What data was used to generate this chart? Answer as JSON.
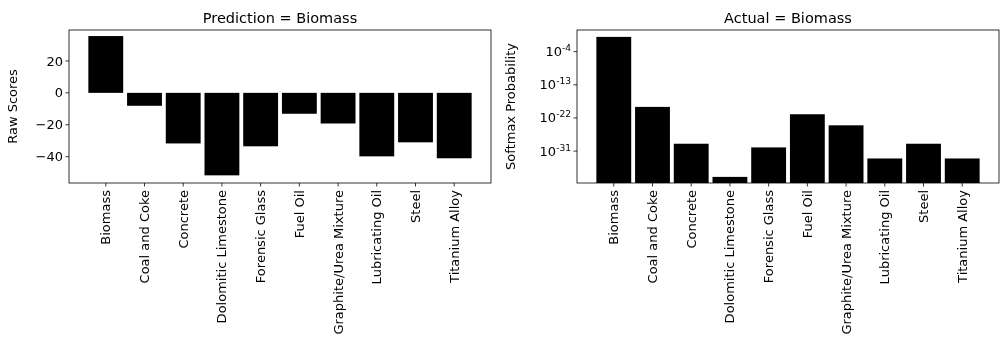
{
  "chart_data": [
    {
      "type": "bar",
      "title": "Prediction = Biomass",
      "ylabel": "Raw Scores",
      "categories": [
        "Biomass",
        "Coal and Coke",
        "Concrete",
        "Dolomitic Limestone",
        "Forensic Glass",
        "Fuel Oil",
        "Graphite/Urea Mixture",
        "Lubricating Oil",
        "Steel",
        "Titanium Alloy"
      ],
      "values": [
        35.6,
        -8.1,
        -31.7,
        -51.7,
        -33.5,
        -13.1,
        -19.2,
        -39.8,
        -31,
        -41
      ],
      "color": "#000000",
      "ylim": [
        -56.5,
        39.4
      ],
      "yticks": [
        -40,
        -20,
        0,
        20
      ],
      "grid": false
    },
    {
      "type": "bar",
      "title": "Actual = Biomass",
      "ylabel": "Softmax Probability",
      "categories": [
        "Biomass",
        "Coal and Coke",
        "Concrete",
        "Dolomitic Limestone",
        "Forensic Glass",
        "Fuel Oil",
        "Graphite/Urea Mixture",
        "Lubricating Oil",
        "Steel",
        "Titanium Alloy"
      ],
      "values": [
        1,
        1e-19,
        1e-29,
        1e-38,
        1e-30,
        1e-21,
        1e-24,
        1e-33,
        1e-29,
        1e-33
      ],
      "color": "#000000",
      "log": true,
      "ylim": [
        2.2e-40,
        74
      ],
      "yticks": [
        {
          "value": 1e-31,
          "label": "10$^{-31}$"
        },
        {
          "value": 1e-22,
          "label": "10$^{-22}$"
        },
        {
          "value": 1e-13,
          "label": "10$^{-13}$"
        },
        {
          "value": 0.0001,
          "label": "10$^{-4}$"
        }
      ],
      "grid": false
    }
  ]
}
